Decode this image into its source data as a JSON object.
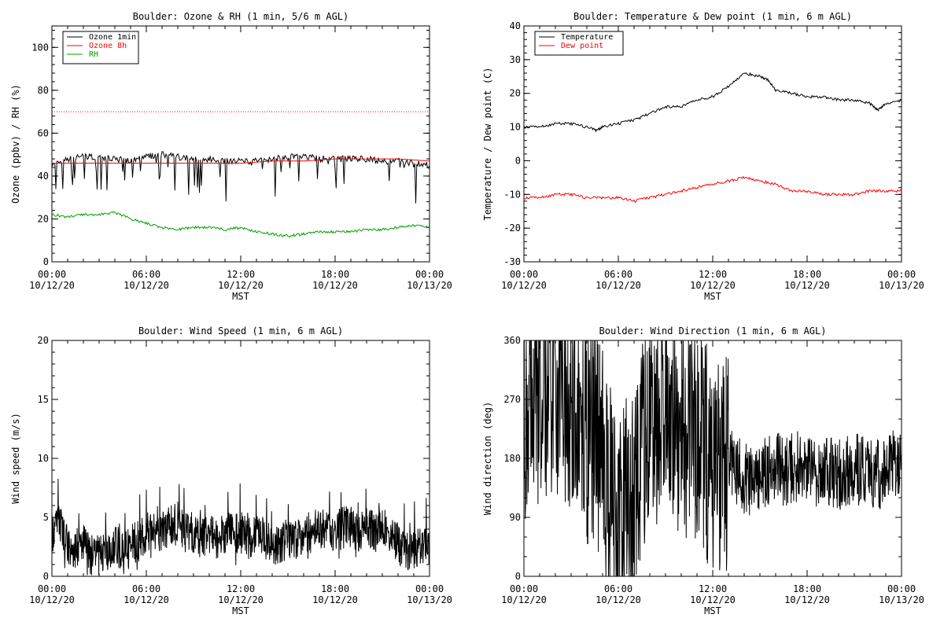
{
  "x_ticks": {
    "times": [
      "00:00",
      "06:00",
      "12:00",
      "18:00",
      "00:00"
    ],
    "dates": [
      "10/12/20",
      "10/12/20",
      "10/12/20",
      "10/12/20",
      "10/13/20"
    ]
  },
  "chart_data": [
    {
      "type": "line",
      "title": "Boulder: Ozone & RH (1 min, 5/6 m AGL)",
      "xlabel": "MST",
      "ylabel": "Ozone (ppbv) / RH (%)",
      "xlim": [
        0,
        24
      ],
      "ylim": [
        0,
        110
      ],
      "yticks": [
        0,
        20,
        40,
        60,
        80,
        100
      ],
      "legend": "top-left",
      "series": [
        {
          "name": "Ozone 1min",
          "color": "#000000",
          "x": [
            0,
            1,
            2,
            3,
            4,
            5,
            6,
            7,
            8,
            9,
            10,
            11,
            12,
            13,
            14,
            15,
            16,
            17,
            18,
            19,
            20,
            21,
            22,
            23,
            24
          ],
          "values": [
            45,
            48,
            49,
            49,
            48,
            47,
            49,
            50,
            49,
            48,
            48,
            47,
            47,
            47,
            48,
            49,
            49,
            48,
            48,
            48,
            48,
            47,
            47,
            46,
            45
          ]
        },
        {
          "name": "Ozone 8h",
          "color": "#ff0000",
          "x": [
            0,
            2,
            4,
            6,
            8,
            10,
            12,
            14,
            16,
            18,
            20,
            22,
            24
          ],
          "values": [
            46,
            46,
            46,
            46,
            46,
            46,
            46,
            47,
            47,
            48,
            48,
            48,
            47
          ]
        },
        {
          "name": "RH",
          "color": "#00a000",
          "x": [
            0,
            1,
            2,
            3,
            4,
            5,
            6,
            7,
            8,
            9,
            10,
            11,
            12,
            13,
            14,
            15,
            16,
            17,
            18,
            19,
            20,
            21,
            22,
            23,
            24
          ],
          "values": [
            22,
            21,
            22,
            22,
            23,
            20,
            18,
            16,
            15,
            16,
            16,
            15,
            16,
            14,
            13,
            12,
            13,
            14,
            14,
            14,
            15,
            15,
            16,
            17,
            16
          ]
        },
        {
          "color": "#ff0000",
          "style": "dotted",
          "x": [
            0,
            24
          ],
          "values": [
            70,
            70
          ]
        }
      ]
    },
    {
      "type": "line",
      "title": "Boulder: Temperature & Dew point (1 min, 6 m AGL)",
      "xlabel": "MST",
      "ylabel": "Temperature / Dew point (C)",
      "xlim": [
        0,
        24
      ],
      "ylim": [
        -30,
        40
      ],
      "yticks": [
        -30,
        -20,
        -10,
        0,
        10,
        20,
        30,
        40
      ],
      "legend": "top-left",
      "series": [
        {
          "name": "Temperature",
          "color": "#000000",
          "x": [
            0,
            1,
            2,
            3,
            4,
            4.6,
            5,
            6,
            7,
            8,
            9,
            10,
            11,
            12,
            13,
            14,
            15,
            15.5,
            16,
            17,
            18,
            19,
            20,
            21,
            22,
            22.5,
            23,
            24
          ],
          "values": [
            10,
            10,
            11,
            11,
            10,
            9,
            10,
            11,
            12,
            14,
            16,
            16,
            18,
            19,
            22,
            26,
            25,
            24,
            21,
            20,
            19,
            19,
            18,
            18,
            17,
            15,
            17,
            18
          ]
        },
        {
          "name": "Dew point",
          "color": "#ff0000",
          "x": [
            0,
            1,
            2,
            3,
            4,
            5,
            6,
            7,
            8,
            9,
            10,
            11,
            12,
            13,
            14,
            15,
            16,
            17,
            18,
            19,
            20,
            21,
            22,
            23,
            24
          ],
          "values": [
            -11,
            -11,
            -10,
            -10,
            -11,
            -11,
            -11,
            -12,
            -11,
            -10,
            -9,
            -8,
            -7,
            -6,
            -5,
            -6,
            -7,
            -9,
            -9,
            -10,
            -10,
            -10,
            -9,
            -9,
            -9
          ]
        }
      ]
    },
    {
      "type": "line",
      "title": "Boulder: Wind Speed (1 min, 6 m AGL)",
      "xlabel": "MST",
      "ylabel": "Wind speed (m/s)",
      "xlim": [
        0,
        24
      ],
      "ylim": [
        0,
        20
      ],
      "yticks": [
        0,
        5,
        10,
        15,
        20
      ],
      "series": [
        {
          "color": "#000000",
          "x": [
            0,
            0.5,
            1,
            1.5,
            2,
            2.5,
            3,
            3.5,
            4,
            4.5,
            5,
            5.5,
            6,
            6.5,
            7,
            7.5,
            8,
            8.5,
            9,
            9.5,
            10,
            10.5,
            11,
            11.5,
            12,
            12.5,
            13,
            13.5,
            14,
            14.5,
            15,
            15.5,
            16,
            16.5,
            17,
            17.5,
            18,
            18.5,
            19,
            19.5,
            20,
            20.5,
            21,
            21.5,
            22,
            22.5,
            23,
            23.5,
            24
          ],
          "values": [
            3,
            4,
            2,
            1.5,
            2,
            1,
            1.5,
            1,
            2,
            1.5,
            2,
            2.5,
            3,
            3,
            3,
            3.5,
            4,
            3,
            3,
            2.5,
            3,
            2.5,
            3,
            3,
            3,
            2.5,
            3,
            2.5,
            2,
            2,
            2.5,
            2.5,
            3,
            3,
            3.5,
            3,
            3,
            3.5,
            3.5,
            3,
            3.5,
            3,
            3.5,
            3,
            2,
            1.5,
            1.5,
            2,
            2
          ]
        }
      ]
    },
    {
      "type": "line",
      "title": "Boulder: Wind Direction (1 min, 6 m AGL)",
      "xlabel": "MST",
      "ylabel": "Wind direction (deg)",
      "xlim": [
        0,
        24
      ],
      "ylim": [
        0,
        360
      ],
      "yticks": [
        0,
        90,
        180,
        270,
        360
      ],
      "series": [
        {
          "color": "#000000",
          "x": [
            0,
            0.5,
            1,
            1.5,
            2,
            2.5,
            3,
            3.5,
            4,
            4.5,
            5,
            5.5,
            6,
            6.5,
            7,
            7.5,
            8,
            8.5,
            9,
            9.5,
            10,
            10.5,
            11,
            11.5,
            12,
            12.5,
            13,
            13.5,
            14,
            14.5,
            15,
            15.5,
            16,
            16.5,
            17,
            17.5,
            18,
            18.5,
            19,
            19.5,
            20,
            20.5,
            21,
            21.5,
            22,
            22.5,
            23,
            23.5,
            24
          ],
          "values": [
            250,
            260,
            280,
            270,
            290,
            280,
            270,
            240,
            220,
            200,
            180,
            120,
            100,
            110,
            120,
            200,
            230,
            250,
            260,
            240,
            230,
            220,
            200,
            190,
            180,
            170,
            180,
            160,
            150,
            140,
            150,
            160,
            170,
            160,
            165,
            170,
            160,
            160,
            165,
            160,
            155,
            160,
            165,
            160,
            160,
            155,
            160,
            170,
            180
          ]
        }
      ]
    }
  ]
}
